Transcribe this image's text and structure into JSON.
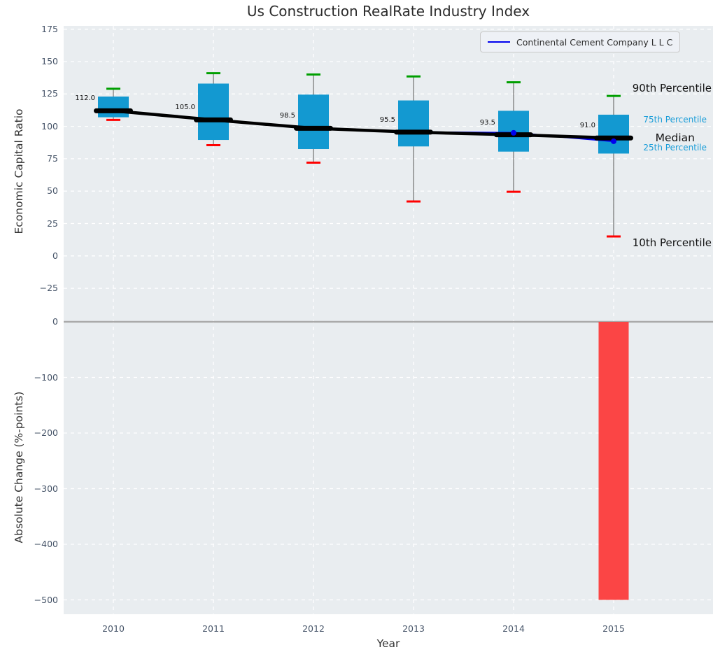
{
  "annotations": {
    "p90": "90th Percentile",
    "p75": "75th Percentile",
    "median": "Median",
    "p25": "25th Percentile",
    "p10": "10th Percentile"
  },
  "colors": {
    "plot_bg": "#e9edf0",
    "grid": "#ffffff",
    "box_fill": "#1399d1",
    "cap_high": "#009f00",
    "cap_low": "#ff0000",
    "whisker": "#707070",
    "median_line": "#000000",
    "company_line": "#0000ee",
    "bar_negative": "#fb4545",
    "zero_line": "#aaaaaa",
    "tick_text": "#475569",
    "annotation_cyan": "#189cd8"
  },
  "chart_data": [
    {
      "type": "boxplot",
      "title": "Us Construction RealRate Industry Index",
      "xlabel": "Year",
      "ylabel": "Economic Capital Ratio",
      "categories": [
        "2010",
        "2011",
        "2012",
        "2013",
        "2014",
        "2015"
      ],
      "yticks": [
        175,
        150,
        125,
        100,
        75,
        50,
        25,
        0,
        -25
      ],
      "ylim": [
        -37,
        178
      ],
      "grid": true,
      "legend_position": "upper right",
      "boxes": [
        {
          "year": "2010",
          "p10": 105,
          "p25": 107,
          "median": 112.0,
          "p75": 123,
          "p90": 129,
          "label": "112.0"
        },
        {
          "year": "2011",
          "p10": 85.5,
          "p25": 89.5,
          "median": 105.0,
          "p75": 133,
          "p90": 141,
          "label": "105.0"
        },
        {
          "year": "2012",
          "p10": 72,
          "p25": 82.5,
          "median": 98.5,
          "p75": 124.5,
          "p90": 140,
          "label": "98.5"
        },
        {
          "year": "2013",
          "p10": 42,
          "p25": 84.5,
          "median": 95.5,
          "p75": 120,
          "p90": 138.5,
          "label": "95.5"
        },
        {
          "year": "2014",
          "p10": 49.5,
          "p25": 80.5,
          "median": 93.5,
          "p75": 112,
          "p90": 134,
          "label": "93.5"
        },
        {
          "year": "2015",
          "p10": 15,
          "p25": 79,
          "median": 91.0,
          "p75": 109,
          "p90": 123.5,
          "label": "91.0"
        }
      ],
      "series": [
        {
          "name": "Continental Cement Company L L C",
          "values": [
            112,
            105,
            98.5,
            95.5,
            95,
            88.5
          ],
          "marker_years": [
            "2014",
            "2015"
          ]
        }
      ]
    },
    {
      "type": "bar",
      "ylabel": "Absolute Change (%-points)",
      "categories": [
        "2010",
        "2011",
        "2012",
        "2013",
        "2014",
        "2015"
      ],
      "values": [
        null,
        null,
        null,
        null,
        null,
        -500
      ],
      "yticks": [
        0,
        -100,
        -200,
        -300,
        -400,
        -500
      ],
      "ylim": [
        -525,
        30
      ],
      "grid": true
    }
  ]
}
